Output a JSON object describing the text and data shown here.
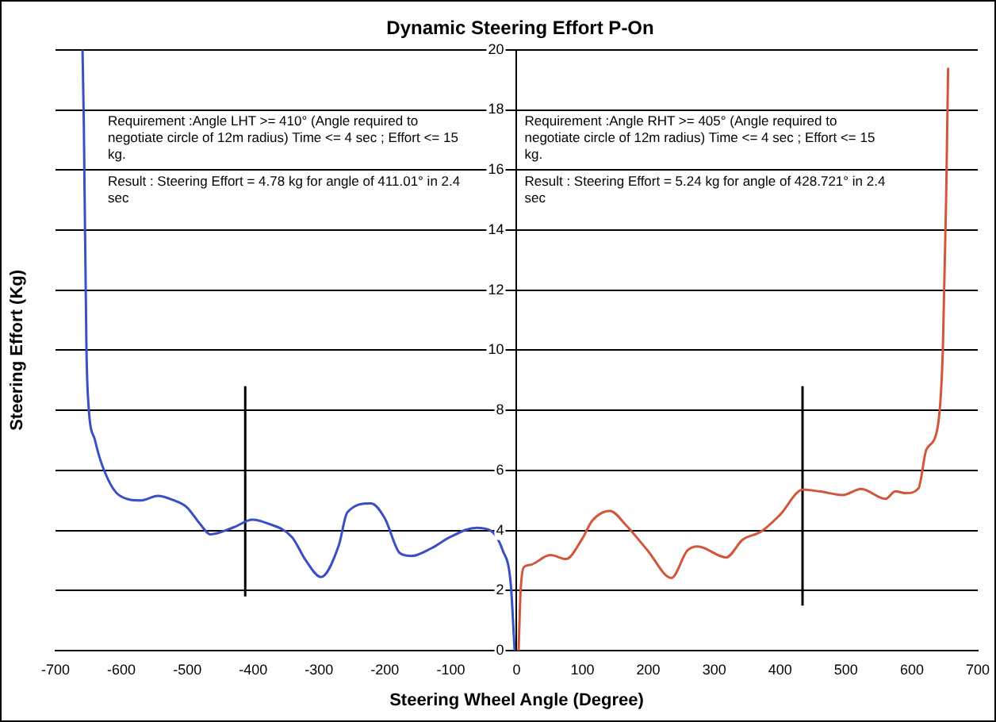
{
  "chart_data": {
    "type": "line",
    "title": "Dynamic Steering Effort P-On",
    "xlabel": "Steering Wheel Angle (Degree)",
    "ylabel": "Steering Effort (Kg)",
    "xlim": [
      -700,
      700
    ],
    "xticks": [
      -700,
      -600,
      -500,
      -400,
      -300,
      -200,
      -100,
      0,
      100,
      200,
      300,
      400,
      500,
      600,
      700
    ],
    "ylim": [
      0,
      20
    ],
    "yticks": [
      0,
      2,
      4,
      6,
      8,
      10,
      12,
      14,
      16,
      18,
      20
    ],
    "grid": "y",
    "legend": false,
    "marker": "none",
    "line_style": "solid",
    "series": [
      {
        "color": "#3a4fc4",
        "x": [
          -659,
          -657,
          -653,
          -650,
          -640,
          -628,
          -605,
          -570,
          -545,
          -520,
          -501,
          -480,
          -465,
          -430,
          -401,
          -380,
          -341,
          -320,
          -297,
          -270,
          -257,
          -221,
          -200,
          -177,
          -160,
          -130,
          -101,
          -61,
          -40,
          -21,
          -9,
          -3
        ],
        "values": [
          20,
          17.5,
          10,
          8.2,
          7.0,
          6.1,
          5.2,
          5.0,
          5.15,
          5.0,
          4.78,
          4.2,
          3.87,
          4.1,
          4.36,
          4.25,
          3.78,
          3.0,
          2.45,
          3.5,
          4.6,
          4.9,
          4.4,
          3.24,
          3.15,
          3.4,
          3.78,
          4.09,
          4.0,
          3.33,
          2.24,
          0
        ]
      },
      {
        "color": "#d2573a",
        "x": [
          3,
          6,
          11,
          20,
          51,
          75,
          99,
          115,
          142,
          165,
          199,
          235,
          259,
          275,
          318,
          343,
          371,
          399,
          435,
          460,
          495,
          523,
          560,
          575,
          591,
          610,
          622,
          639,
          647,
          652,
          655
        ],
        "values": [
          0,
          1.96,
          2.78,
          2.85,
          3.18,
          3.05,
          3.7,
          4.33,
          4.65,
          4.2,
          3.33,
          2.42,
          3.33,
          3.47,
          3.1,
          3.69,
          3.96,
          4.5,
          5.36,
          5.3,
          5.18,
          5.38,
          5.05,
          5.3,
          5.24,
          5.4,
          6.69,
          7.42,
          10,
          15,
          19.4
        ]
      },
      {
        "color": "#000000",
        "x": [
          -412,
          -412
        ],
        "values": [
          1.8,
          8.8
        ]
      },
      {
        "color": "#000000",
        "x": [
          434,
          434
        ],
        "values": [
          1.5,
          8.8
        ]
      }
    ],
    "annotations": [
      "Requirement :Angle LHT >= 410° (Angle required to negotiate circle of 12m radius) Time <= 4 sec ; Effort <= 15 kg.",
      "Result : Steering Effort = 4.78 kg for angle of 411.01° in 2.4 sec",
      "Requirement :Angle RHT >= 405° (Angle required to negotiate circle of 12m radius) Time <= 4 sec ; Effort <= 15 kg.",
      "Result : Steering Effort = 5.24 kg for angle of 428.721° in 2.4 sec"
    ]
  }
}
